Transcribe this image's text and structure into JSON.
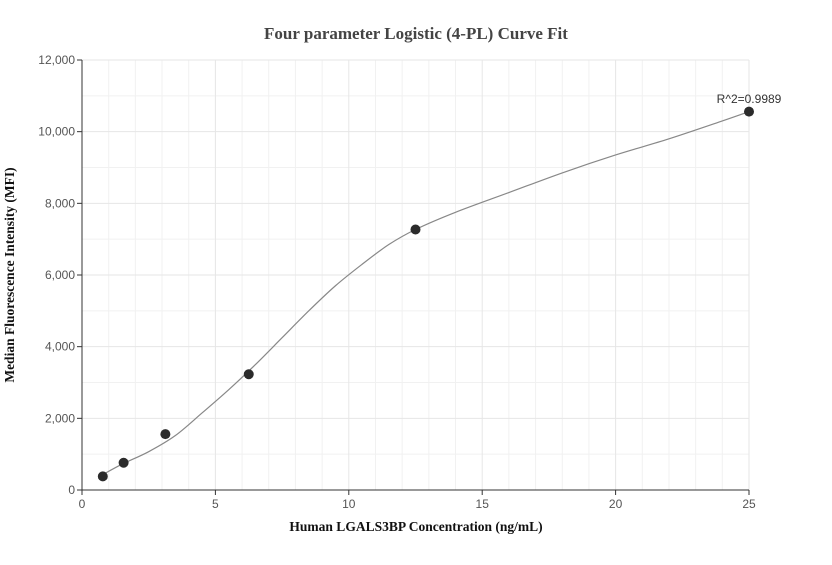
{
  "chart_data": {
    "type": "scatter",
    "title": "Four parameter Logistic (4-PL) Curve Fit",
    "xlabel": "Human LGALS3BP Concentration (ng/mL)",
    "ylabel": "Median Fluorescence Intensity (MFI)",
    "xlim": [
      0,
      25
    ],
    "ylim": [
      0,
      12000
    ],
    "x_ticks": [
      0,
      5,
      10,
      15,
      20,
      25
    ],
    "x_tick_labels": [
      "0",
      "5",
      "10",
      "15",
      "20",
      "25"
    ],
    "y_ticks": [
      0,
      2000,
      4000,
      6000,
      8000,
      10000,
      12000
    ],
    "y_tick_labels": [
      "0",
      "2,000",
      "4,000",
      "6,000",
      "8,000",
      "10,000",
      "12,000"
    ],
    "grid": true,
    "points": {
      "x": [
        0.78,
        1.56,
        3.125,
        6.25,
        12.5,
        25
      ],
      "y": [
        380,
        760,
        1560,
        3230,
        7270,
        10560
      ]
    },
    "fit_curve": {
      "x": [
        0.78,
        1.5,
        2.5,
        3.5,
        4.5,
        5.5,
        6.5,
        7.5,
        8.5,
        9.5,
        10.5,
        11.5,
        12.5,
        14,
        16,
        18,
        20,
        22,
        24,
        25
      ],
      "y": [
        430,
        720,
        1070,
        1520,
        2150,
        2800,
        3500,
        4250,
        5000,
        5700,
        6300,
        6850,
        7270,
        7750,
        8300,
        8850,
        9350,
        9800,
        10300,
        10560
      ]
    },
    "annotation": "R^2=0.9989",
    "colors": {
      "point": "#2b2b2b",
      "curve": "#888888",
      "grid": "#e6e6e6",
      "axis": "#333333"
    }
  }
}
